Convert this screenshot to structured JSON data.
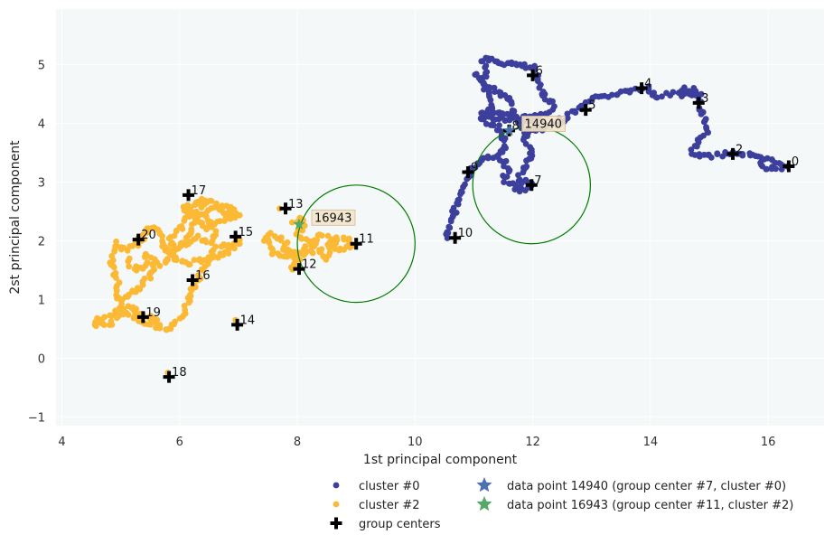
{
  "chart_data": {
    "type": "scatter",
    "xlabel": "1st principal component",
    "ylabel": "2st principal component",
    "xlim": [
      3.9,
      16.95
    ],
    "ylim": [
      -1.15,
      5.95
    ],
    "x_ticks": [
      4,
      6,
      8,
      10,
      12,
      14,
      16
    ],
    "y_ticks": [
      -1,
      0,
      1,
      2,
      3,
      4,
      5
    ],
    "grid": true,
    "legend_position": "below",
    "colors": {
      "cluster0": "#3c3f9c",
      "cluster2": "#fbb935",
      "centers": "#000000",
      "circle": "#007a00",
      "star0": "#4c72b0",
      "star2": "#55a868",
      "plot_bg": "#f4f8f8",
      "annotation_bg": "#f5e6cc"
    },
    "clusters": [
      {
        "name": "cluster #0",
        "color": "#3c3f9c",
        "paths": [
          [
            [
              10.55,
              2.05
            ],
            [
              10.6,
              2.3
            ],
            [
              10.7,
              2.6
            ],
            [
              10.85,
              2.95
            ],
            [
              10.95,
              3.2
            ],
            [
              11.1,
              3.35
            ],
            [
              11.3,
              3.45
            ],
            [
              11.5,
              3.5
            ],
            [
              11.55,
              3.7
            ],
            [
              11.4,
              3.95
            ],
            [
              11.15,
              4.05
            ],
            [
              11.1,
              4.15
            ],
            [
              11.4,
              4.15
            ],
            [
              11.7,
              4.2
            ],
            [
              11.65,
              4.4
            ],
            [
              11.4,
              4.55
            ],
            [
              11.15,
              4.7
            ],
            [
              11.2,
              4.9
            ],
            [
              11.15,
              5.1
            ],
            [
              11.4,
              5.05
            ],
            [
              11.7,
              5.0
            ],
            [
              12.0,
              4.95
            ],
            [
              12.1,
              4.7
            ],
            [
              12.2,
              4.45
            ],
            [
              12.35,
              4.35
            ],
            [
              12.3,
              4.2
            ],
            [
              12.15,
              4.15
            ],
            [
              11.9,
              4.1
            ],
            [
              11.75,
              4.0
            ],
            [
              11.9,
              3.85
            ],
            [
              12.2,
              3.9
            ],
            [
              12.4,
              4.0
            ],
            [
              12.55,
              4.1
            ],
            [
              12.7,
              4.2
            ],
            [
              12.9,
              4.3
            ],
            [
              13.0,
              4.42
            ],
            [
              13.2,
              4.45
            ],
            [
              13.4,
              4.5
            ],
            [
              13.6,
              4.55
            ],
            [
              13.8,
              4.58
            ],
            [
              13.95,
              4.6
            ],
            [
              14.1,
              4.45
            ],
            [
              14.3,
              4.5
            ],
            [
              14.5,
              4.55
            ],
            [
              14.7,
              4.5
            ],
            [
              14.85,
              4.4
            ],
            [
              14.85,
              4.2
            ],
            [
              14.95,
              4.0
            ],
            [
              15.0,
              3.85
            ],
            [
              14.8,
              3.7
            ],
            [
              14.7,
              3.5
            ],
            [
              14.85,
              3.45
            ],
            [
              15.1,
              3.45
            ],
            [
              15.3,
              3.5
            ],
            [
              15.5,
              3.5
            ],
            [
              15.7,
              3.45
            ],
            [
              15.9,
              3.4
            ],
            [
              16.1,
              3.35
            ],
            [
              16.3,
              3.3
            ],
            [
              16.2,
              3.22
            ],
            [
              15.95,
              3.25
            ],
            [
              15.8,
              3.38
            ]
          ],
          [
            [
              11.45,
              3.4
            ],
            [
              11.6,
              3.2
            ],
            [
              11.5,
              3.05
            ],
            [
              11.65,
              2.95
            ],
            [
              11.8,
              2.85
            ],
            [
              12.0,
              2.95
            ],
            [
              11.75,
              3.05
            ],
            [
              11.9,
              3.3
            ],
            [
              12.0,
              3.55
            ],
            [
              11.85,
              3.75
            ],
            [
              12.0,
              3.95
            ]
          ],
          [
            [
              11.0,
              4.85
            ],
            [
              11.2,
              4.6
            ],
            [
              11.3,
              4.35
            ],
            [
              11.25,
              4.1
            ],
            [
              11.55,
              4.05
            ],
            [
              11.8,
              4.1
            ],
            [
              12.2,
              4.05
            ]
          ],
          [
            [
              14.5,
              4.45
            ],
            [
              14.6,
              4.6
            ],
            [
              14.75,
              4.55
            ],
            [
              14.9,
              4.45
            ]
          ]
        ]
      },
      {
        "name": "cluster #2",
        "color": "#fbb935",
        "paths": [
          [
            [
              4.55,
              0.6
            ],
            [
              4.65,
              0.65
            ],
            [
              4.8,
              0.7
            ],
            [
              4.95,
              0.8
            ],
            [
              5.1,
              0.75
            ],
            [
              5.25,
              0.7
            ],
            [
              5.4,
              0.62
            ],
            [
              5.6,
              0.55
            ],
            [
              5.75,
              0.5
            ],
            [
              5.9,
              0.55
            ],
            [
              6.05,
              0.7
            ],
            [
              6.1,
              0.9
            ],
            [
              6.2,
              1.1
            ],
            [
              6.3,
              1.35
            ],
            [
              6.45,
              1.6
            ],
            [
              6.6,
              1.85
            ],
            [
              6.85,
              1.95
            ],
            [
              7.0,
              1.98
            ],
            [
              6.8,
              1.8
            ],
            [
              6.55,
              1.7
            ],
            [
              6.3,
              1.65
            ],
            [
              6.1,
              1.6
            ],
            [
              5.9,
              1.7
            ],
            [
              5.75,
              1.9
            ],
            [
              5.65,
              2.1
            ],
            [
              5.55,
              2.25
            ],
            [
              5.45,
              2.15
            ],
            [
              5.35,
              2.0
            ],
            [
              5.2,
              1.9
            ],
            [
              5.05,
              1.85
            ],
            [
              4.9,
              1.95
            ],
            [
              4.85,
              1.75
            ],
            [
              4.85,
              1.55
            ],
            [
              4.95,
              1.35
            ],
            [
              4.9,
              1.15
            ],
            [
              5.0,
              0.95
            ],
            [
              5.15,
              1.1
            ],
            [
              5.35,
              1.2
            ],
            [
              5.5,
              1.4
            ],
            [
              5.6,
              1.6
            ],
            [
              5.45,
              1.75
            ],
            [
              5.35,
              1.5
            ],
            [
              5.2,
              1.55
            ],
            [
              5.1,
              1.7
            ]
          ],
          [
            [
              5.7,
              1.55
            ],
            [
              5.85,
              1.75
            ],
            [
              6.0,
              1.9
            ],
            [
              6.2,
              2.0
            ],
            [
              6.35,
              2.05
            ],
            [
              6.5,
              1.95
            ],
            [
              6.6,
              2.1
            ],
            [
              6.55,
              2.3
            ],
            [
              6.4,
              2.45
            ],
            [
              6.55,
              2.55
            ],
            [
              6.75,
              2.6
            ],
            [
              6.95,
              2.55
            ],
            [
              6.8,
              2.4
            ],
            [
              6.65,
              2.3
            ],
            [
              6.45,
              2.2
            ],
            [
              6.3,
              2.35
            ],
            [
              6.2,
              2.55
            ],
            [
              6.05,
              2.6
            ],
            [
              6.15,
              2.4
            ],
            [
              6.0,
              2.2
            ],
            [
              5.85,
              2.05
            ],
            [
              5.9,
              1.85
            ],
            [
              6.1,
              1.95
            ],
            [
              6.2,
              2.15
            ],
            [
              6.35,
              2.6
            ],
            [
              6.5,
              2.68
            ]
          ],
          [
            [
              7.4,
              2.0
            ],
            [
              7.55,
              2.1
            ],
            [
              7.7,
              2.05
            ],
            [
              7.8,
              2.0
            ],
            [
              7.75,
              1.85
            ],
            [
              7.9,
              1.8
            ],
            [
              8.0,
              1.6
            ],
            [
              7.9,
              1.5
            ],
            [
              8.05,
              1.75
            ],
            [
              8.2,
              1.95
            ],
            [
              8.35,
              1.85
            ],
            [
              8.5,
              1.7
            ],
            [
              8.55,
              1.9
            ],
            [
              8.7,
              2.05
            ],
            [
              8.85,
              2.0
            ],
            [
              8.95,
              1.95
            ],
            [
              8.7,
              1.85
            ],
            [
              8.55,
              2.05
            ],
            [
              8.4,
              2.1
            ],
            [
              8.3,
              1.95
            ],
            [
              8.15,
              2.05
            ],
            [
              8.0,
              2.1
            ],
            [
              8.1,
              2.25
            ],
            [
              7.95,
              2.3
            ],
            [
              8.15,
              2.4
            ]
          ],
          [
            [
              4.6,
              0.58
            ],
            [
              4.75,
              0.55
            ],
            [
              4.9,
              0.65
            ],
            [
              5.0,
              0.85
            ],
            [
              5.2,
              0.9
            ],
            [
              5.3,
              0.72
            ],
            [
              5.5,
              0.7
            ],
            [
              5.65,
              0.6
            ]
          ],
          [
            [
              6.25,
              2.62
            ],
            [
              6.4,
              2.7
            ],
            [
              6.6,
              2.65
            ],
            [
              6.75,
              2.45
            ],
            [
              6.9,
              2.35
            ],
            [
              7.05,
              2.5
            ]
          ],
          [
            [
              7.55,
              1.95
            ],
            [
              7.6,
              1.78
            ],
            [
              7.8,
              1.75
            ],
            [
              8.2,
              1.82
            ],
            [
              8.45,
              1.8
            ]
          ]
        ],
        "points": [
          [
            5.8,
            -0.25
          ],
          [
            6.95,
            0.65
          ],
          [
            7.02,
            2.02
          ],
          [
            7.02,
            1.95
          ],
          [
            8.1,
            2.35
          ],
          [
            7.7,
            2.55
          ],
          [
            5.3,
            2.05
          ],
          [
            4.6,
            0.68
          ],
          [
            5.85,
            0.5
          ]
        ]
      }
    ],
    "group_centers": {
      "name": "group centers",
      "points": [
        {
          "label": "0",
          "x": 16.35,
          "y": 3.27
        },
        {
          "label": "2",
          "x": 15.4,
          "y": 3.48
        },
        {
          "label": "3",
          "x": 14.82,
          "y": 4.35
        },
        {
          "label": "4",
          "x": 13.85,
          "y": 4.6
        },
        {
          "label": "5",
          "x": 12.9,
          "y": 4.23
        },
        {
          "label": "6",
          "x": 12.0,
          "y": 4.82
        },
        {
          "label": "7",
          "x": 11.98,
          "y": 2.95
        },
        {
          "label": "8",
          "x": 11.6,
          "y": 3.88
        },
        {
          "label": "9",
          "x": 10.9,
          "y": 3.17
        },
        {
          "label": "10",
          "x": 10.68,
          "y": 2.05
        },
        {
          "label": "11",
          "x": 9.0,
          "y": 1.95
        },
        {
          "label": "12",
          "x": 8.03,
          "y": 1.52
        },
        {
          "label": "13",
          "x": 7.8,
          "y": 2.55
        },
        {
          "label": "14",
          "x": 6.98,
          "y": 0.57
        },
        {
          "label": "15",
          "x": 6.95,
          "y": 2.07
        },
        {
          "label": "16",
          "x": 6.22,
          "y": 1.33
        },
        {
          "label": "17",
          "x": 6.15,
          "y": 2.78
        },
        {
          "label": "18",
          "x": 5.82,
          "y": -0.32
        },
        {
          "label": "19",
          "x": 5.38,
          "y": 0.7
        },
        {
          "label": "20",
          "x": 5.3,
          "y": 2.02
        }
      ]
    },
    "circles": [
      {
        "cx": 11.98,
        "cy": 2.95,
        "r": 1.0
      },
      {
        "cx": 9.0,
        "cy": 1.95,
        "r": 1.0
      }
    ],
    "highlighted_points": [
      {
        "legend": "data point 14940 (group center #7, cluster #0)",
        "label": "14940",
        "x": 11.6,
        "y": 3.88,
        "color": "#4c72b0"
      },
      {
        "legend": "data point 16943 (group center #11, cluster #2)",
        "label": "16943",
        "x": 8.03,
        "y": 2.28,
        "color": "#55a868"
      }
    ]
  }
}
